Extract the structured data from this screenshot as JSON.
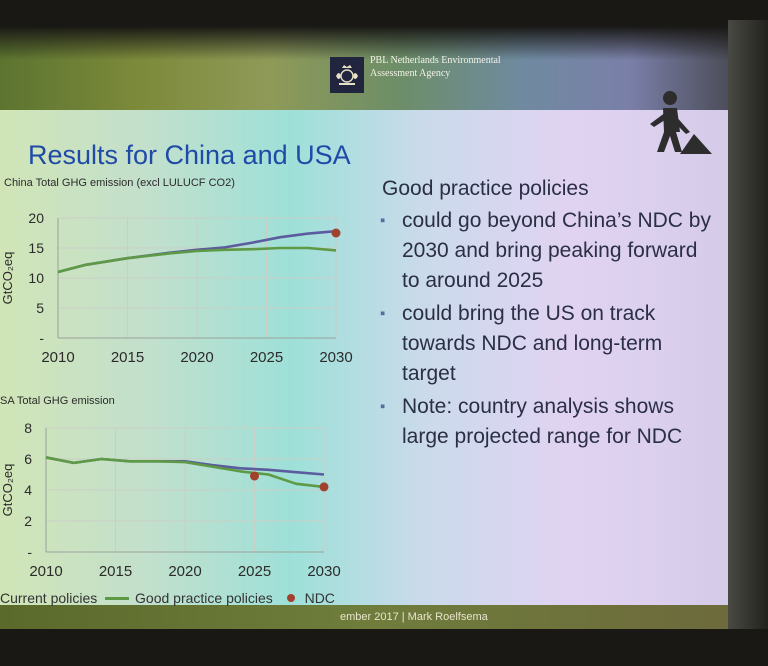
{
  "header": {
    "agency_line1": "PBL Netherlands Environmental",
    "agency_line2": "Assessment Agency"
  },
  "slide": {
    "title": "Results for China and USA",
    "intro": "Good practice policies",
    "bullets": [
      "could go beyond China’s NDC by 2030 and bring peaking forward to around 2025",
      "could bring the US on track towards NDC and long-term target",
      "Note: country analysis shows large projected range for NDC"
    ],
    "footer": "ember 2017 | Mark Roelfsema"
  },
  "legend": {
    "current": "Current policies",
    "good": "Good practice policies",
    "ndc": "NDC"
  },
  "colors": {
    "current": "#5b5b9e",
    "good": "#5e9a46",
    "ndc": "#a0412d",
    "title": "#1f4aa8"
  },
  "icons": {
    "logo": "royal-crest-icon",
    "worker": "construction-worker-icon",
    "bullet": "square-bullet-icon"
  },
  "chart_data": [
    {
      "type": "line",
      "title": "China Total GHG emission  (excl LULUCF CO2)",
      "ylabel": "GtCO₂eq",
      "xlim": [
        2010,
        2030
      ],
      "ylim": [
        0,
        20
      ],
      "x_ticks": [
        "2010",
        "2015",
        "2020",
        "2025",
        "2030"
      ],
      "y_ticks": [
        "-",
        "5",
        "10",
        "15",
        "20"
      ],
      "grid": true,
      "series": [
        {
          "name": "Current policies",
          "x": [
            2010,
            2012,
            2015,
            2018,
            2020,
            2022,
            2024,
            2026,
            2028,
            2030
          ],
          "values": [
            11.0,
            12.2,
            13.3,
            14.2,
            14.7,
            15.1,
            15.9,
            16.8,
            17.4,
            17.8
          ]
        },
        {
          "name": "Good practice policies",
          "x": [
            2010,
            2012,
            2015,
            2018,
            2020,
            2022,
            2024,
            2026,
            2028,
            2030
          ],
          "values": [
            11.0,
            12.2,
            13.3,
            14.1,
            14.5,
            14.7,
            14.8,
            15.0,
            15.0,
            14.6
          ]
        }
      ],
      "points": [
        {
          "name": "NDC",
          "x": 2030,
          "y": 17.5
        }
      ]
    },
    {
      "type": "line",
      "title": "SA   Total GHG emission",
      "ylabel": "GtCO₂eq",
      "xlim": [
        2010,
        2030
      ],
      "ylim": [
        0,
        8
      ],
      "x_ticks": [
        "2010",
        "2015",
        "2020",
        "2025",
        "2030"
      ],
      "y_ticks": [
        "-",
        "2",
        "4",
        "6",
        "8"
      ],
      "grid": true,
      "series": [
        {
          "name": "Current policies",
          "x": [
            2010,
            2012,
            2014,
            2016,
            2018,
            2020,
            2022,
            2024,
            2026,
            2028,
            2030
          ],
          "values": [
            6.1,
            5.75,
            6.0,
            5.85,
            5.85,
            5.85,
            5.6,
            5.4,
            5.3,
            5.15,
            5.0
          ]
        },
        {
          "name": "Good practice policies",
          "x": [
            2010,
            2012,
            2014,
            2016,
            2018,
            2020,
            2022,
            2024,
            2026,
            2028,
            2030
          ],
          "values": [
            6.1,
            5.75,
            6.0,
            5.85,
            5.85,
            5.8,
            5.5,
            5.2,
            5.0,
            4.4,
            4.2
          ]
        }
      ],
      "points": [
        {
          "name": "NDC",
          "x": 2025,
          "y": 4.9
        },
        {
          "name": "NDC",
          "x": 2030,
          "y": 4.2
        }
      ]
    }
  ]
}
